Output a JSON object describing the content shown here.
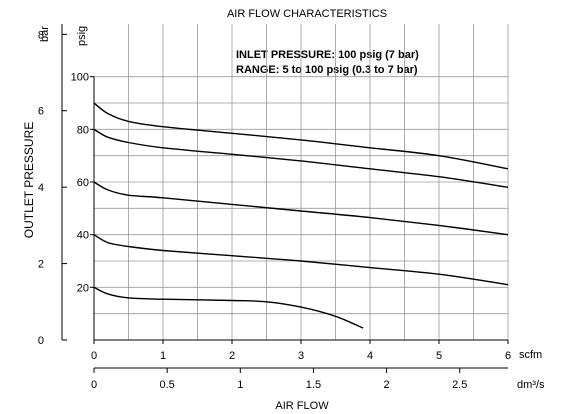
{
  "chart_data": {
    "type": "line",
    "title": "AIR FLOW CHARACTERISTICS",
    "xlabel": "AIR FLOW",
    "ylabel": "OUTLET PRESSURE",
    "annotations": [
      "INLET PRESSURE: 100 psig (7 bar)",
      "RANGE: 5 to 100 psig (0.3 to 7 bar)"
    ],
    "x_primary": {
      "unit": "scfm",
      "range": [
        0,
        6
      ],
      "ticks": [
        "0",
        "1",
        "2",
        "3",
        "4",
        "5",
        "6"
      ]
    },
    "x_secondary": {
      "unit": "dm³/s",
      "range": [
        0,
        2.83
      ],
      "ticks": [
        {
          "v": 0,
          "label": "0"
        },
        {
          "v": 0.5,
          "label": "0.5"
        },
        {
          "v": 1,
          "label": "1"
        },
        {
          "v": 1.5,
          "label": "1.5"
        },
        {
          "v": 2,
          "label": "2"
        },
        {
          "v": 2.5,
          "label": "2.5"
        }
      ]
    },
    "y_primary": {
      "unit": "psig",
      "range": [
        0,
        120
      ],
      "ticks": [
        "20",
        "40",
        "60",
        "80",
        "100"
      ]
    },
    "y_secondary": {
      "unit": "bar",
      "range": [
        0,
        8.27
      ],
      "ticks": [
        "0",
        "2",
        "4",
        "6",
        "8"
      ]
    },
    "grid": true,
    "series": [
      {
        "x": [
          0,
          0.2,
          0.5,
          1.0,
          2.0,
          3.0,
          4.0,
          5.0,
          6.0
        ],
        "y": [
          90,
          86,
          83,
          81,
          78.5,
          76,
          73,
          70,
          65
        ]
      },
      {
        "x": [
          0,
          0.2,
          0.5,
          1.0,
          2.0,
          3.0,
          4.0,
          5.0,
          6.0
        ],
        "y": [
          80,
          77,
          75,
          73,
          70.5,
          68,
          65,
          62,
          58
        ]
      },
      {
        "x": [
          0,
          0.2,
          0.5,
          1.0,
          2.0,
          3.0,
          4.0,
          5.0,
          6.0
        ],
        "y": [
          60,
          57,
          55,
          54,
          51.5,
          49,
          46.5,
          43.5,
          40
        ]
      },
      {
        "x": [
          0,
          0.2,
          0.5,
          1.0,
          2.0,
          3.0,
          4.0,
          5.0,
          6.0
        ],
        "y": [
          40,
          37,
          35.5,
          34,
          32,
          30,
          27.5,
          25,
          21
        ]
      },
      {
        "x": [
          0,
          0.2,
          0.5,
          1.0,
          2.0,
          2.5,
          3.0,
          3.5,
          3.9
        ],
        "y": [
          20,
          17.5,
          16,
          15.5,
          15,
          14.5,
          12.5,
          9,
          4.5
        ]
      }
    ]
  }
}
